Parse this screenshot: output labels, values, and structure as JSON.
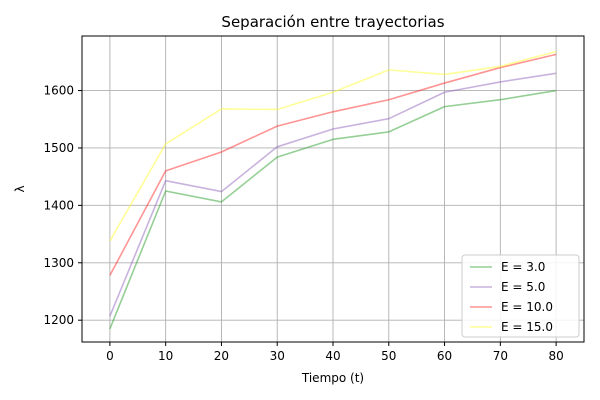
{
  "chart_data": {
    "type": "line",
    "title": "Separación entre trayectorias",
    "xlabel": "Tiempo (t)",
    "ylabel": "λ",
    "x": [
      0,
      10,
      20,
      30,
      40,
      50,
      60,
      70,
      80
    ],
    "xlim": [
      -5,
      85
    ],
    "ylim": [
      1162,
      1695
    ],
    "xticks": [
      "0",
      "10",
      "20",
      "30",
      "40",
      "50",
      "60",
      "70",
      "80"
    ],
    "yticks": [
      "1200",
      "1300",
      "1400",
      "1500",
      "1600"
    ],
    "grid": true,
    "legend_position": "lower-right",
    "series": [
      {
        "name": "E = 3.0",
        "color": "#2ca02c",
        "values": [
          1185,
          1425,
          1406,
          1484,
          1515,
          1528,
          1572,
          1584,
          1600
        ]
      },
      {
        "name": "E = 5.0",
        "color": "#9467bd",
        "values": [
          1207,
          1443,
          1424,
          1502,
          1533,
          1551,
          1597,
          1615,
          1630
        ]
      },
      {
        "name": "E = 10.0",
        "color": "#ff2a2a",
        "values": [
          1278,
          1460,
          1493,
          1538,
          1563,
          1584,
          1613,
          1640,
          1663
        ]
      },
      {
        "name": "E = 15.0",
        "color": "#ffff33",
        "values": [
          1338,
          1507,
          1568,
          1567,
          1597,
          1636,
          1628,
          1642,
          1668
        ]
      }
    ]
  }
}
